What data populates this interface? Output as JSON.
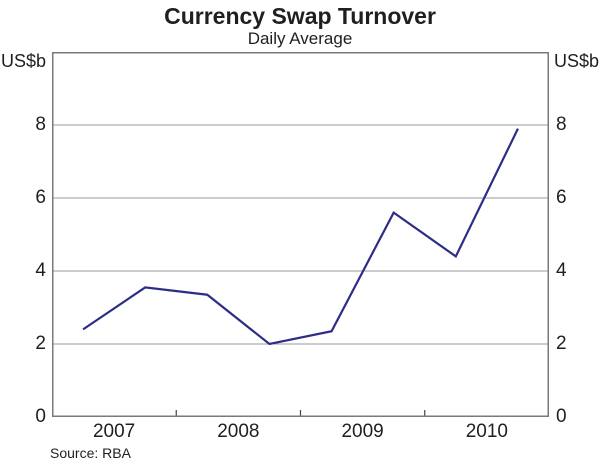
{
  "chart_data": {
    "type": "line",
    "title": "Currency Swap Turnover",
    "subtitle": "Daily Average",
    "ylabel_left": "US$b",
    "ylabel_right": "US$b",
    "ylim": [
      0,
      10
    ],
    "y_ticks": [
      0,
      2,
      4,
      6,
      8
    ],
    "grid": "horizontal",
    "legend": "none",
    "x_unit": "half-year observations",
    "year_labels": [
      "2007",
      "2008",
      "2009",
      "2010"
    ],
    "categories": [
      "2007 H1",
      "2007 H2",
      "2008 H1",
      "2008 H2",
      "2009 H1",
      "2009 H2",
      "2010 H1",
      "2010 H2"
    ],
    "series": [
      {
        "name": "Currency swap turnover (daily average)",
        "values": [
          2.4,
          3.55,
          3.35,
          2.0,
          2.35,
          5.6,
          4.4,
          7.9
        ]
      }
    ],
    "source": "Source: RBA",
    "colors": {
      "line": "#2d2d87",
      "grid": "#9a9a9a",
      "frame": "#7a7a7a",
      "tick": "#444444",
      "text": "#1f1f1f"
    }
  }
}
